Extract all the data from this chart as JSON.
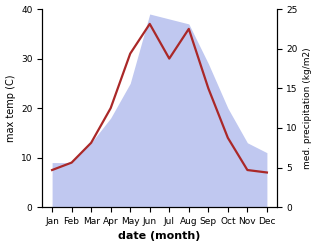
{
  "months": [
    "Jan",
    "Feb",
    "Mar",
    "Apr",
    "May",
    "Jun",
    "Jul",
    "Aug",
    "Sep",
    "Oct",
    "Nov",
    "Dec"
  ],
  "x": [
    1,
    2,
    3,
    4,
    5,
    6,
    7,
    8,
    9,
    10,
    11,
    12
  ],
  "temperature": [
    7.5,
    9,
    13,
    20,
    31,
    37,
    30,
    36,
    24,
    14,
    7.5,
    7
  ],
  "precipitation": [
    9,
    9,
    13,
    18,
    25,
    39,
    38,
    37,
    29,
    20,
    13,
    11
  ],
  "temp_color": "#aa2828",
  "precip_color_fill": "#c0c8f0",
  "xlabel": "date (month)",
  "ylabel_left": "max temp (C)",
  "ylabel_right": "med. precipitation (kg/m2)",
  "ylim_left": [
    0,
    40
  ],
  "ylim_right": [
    0,
    40
  ],
  "yticks_left": [
    0,
    10,
    20,
    30,
    40
  ],
  "yticks_right_vals": [
    0,
    5,
    10,
    15,
    20,
    25
  ],
  "background_color": "#ffffff"
}
